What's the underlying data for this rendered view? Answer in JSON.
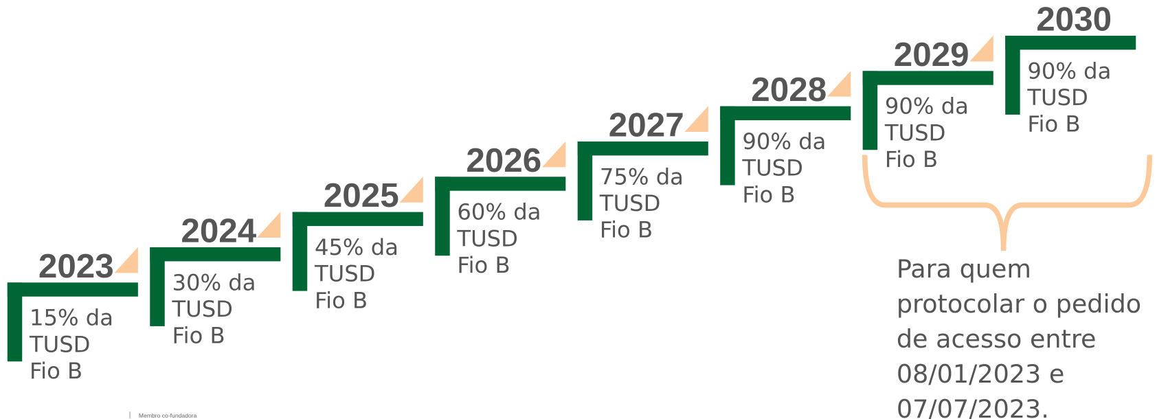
{
  "steps": [
    {
      "year": "2023",
      "lines": [
        "15% da",
        "TUSD",
        "Fio B"
      ]
    },
    {
      "year": "2024",
      "lines": [
        "30% da",
        "TUSD",
        "Fio B"
      ]
    },
    {
      "year": "2025",
      "lines": [
        "45% da",
        "TUSD",
        "Fio B"
      ]
    },
    {
      "year": "2026",
      "lines": [
        "60% da",
        "TUSD",
        "Fio B"
      ]
    },
    {
      "year": "2027",
      "lines": [
        "75% da",
        "TUSD",
        "Fio B"
      ]
    },
    {
      "year": "2028",
      "lines": [
        "90% da",
        "TUSD",
        "Fio B"
      ]
    },
    {
      "year": "2029",
      "lines": [
        "90% da",
        "TUSD",
        "Fio B"
      ]
    },
    {
      "year": "2030",
      "lines": [
        "90% da",
        "TUSD",
        "Fio B"
      ]
    }
  ],
  "note": {
    "lines": [
      "Para quem",
      "protocolar o pedido",
      "de acesso entre",
      "08/01/2023 e",
      "07/07/2023."
    ]
  },
  "footer": "Membro co-fundadora"
}
